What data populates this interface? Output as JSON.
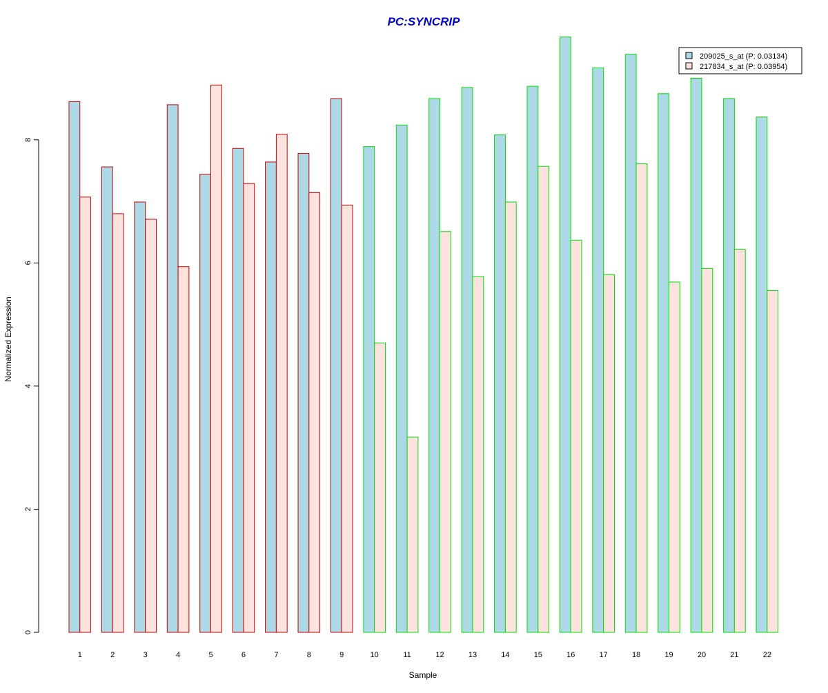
{
  "chart_data": {
    "type": "bar",
    "title": "PC:SYNCRIP",
    "xlabel": "Sample",
    "ylabel": "Normalized Expression",
    "categories": [
      "1",
      "2",
      "3",
      "4",
      "5",
      "6",
      "7",
      "8",
      "9",
      "10",
      "11",
      "12",
      "13",
      "14",
      "15",
      "16",
      "17",
      "18",
      "19",
      "20",
      "21",
      "22"
    ],
    "series": [
      {
        "name": "209025_s_at (P: 0.03134)",
        "fill": "#add8e6",
        "values": [
          8.62,
          7.56,
          6.99,
          8.57,
          7.44,
          7.86,
          7.64,
          7.78,
          8.67,
          7.89,
          8.24,
          8.67,
          8.85,
          8.08,
          8.87,
          9.67,
          9.17,
          9.39,
          8.75,
          9.0,
          8.67,
          8.37
        ]
      },
      {
        "name": "217834_s_at (P: 0.03954)",
        "fill": "#fde2de",
        "values": [
          7.07,
          6.8,
          6.71,
          5.94,
          8.89,
          7.29,
          8.09,
          7.14,
          6.94,
          4.7,
          3.17,
          6.51,
          5.78,
          6.99,
          7.57,
          6.37,
          5.81,
          7.61,
          5.69,
          5.91,
          6.22,
          5.55
        ]
      }
    ],
    "group_outline": [
      "#cc0000",
      "#cc0000",
      "#cc0000",
      "#cc0000",
      "#cc0000",
      "#cc0000",
      "#cc0000",
      "#cc0000",
      "#cc0000",
      "#00dd00",
      "#00dd00",
      "#00dd00",
      "#00dd00",
      "#00dd00",
      "#00dd00",
      "#00dd00",
      "#00dd00",
      "#00dd00",
      "#00dd00",
      "#00dd00",
      "#00dd00",
      "#00dd00"
    ],
    "yticks": [
      "0",
      "2",
      "4",
      "6",
      "8"
    ],
    "ylim": [
      0,
      9.7
    ],
    "grid": false,
    "legend_position": "top-right",
    "title_color": "#0000cc"
  }
}
